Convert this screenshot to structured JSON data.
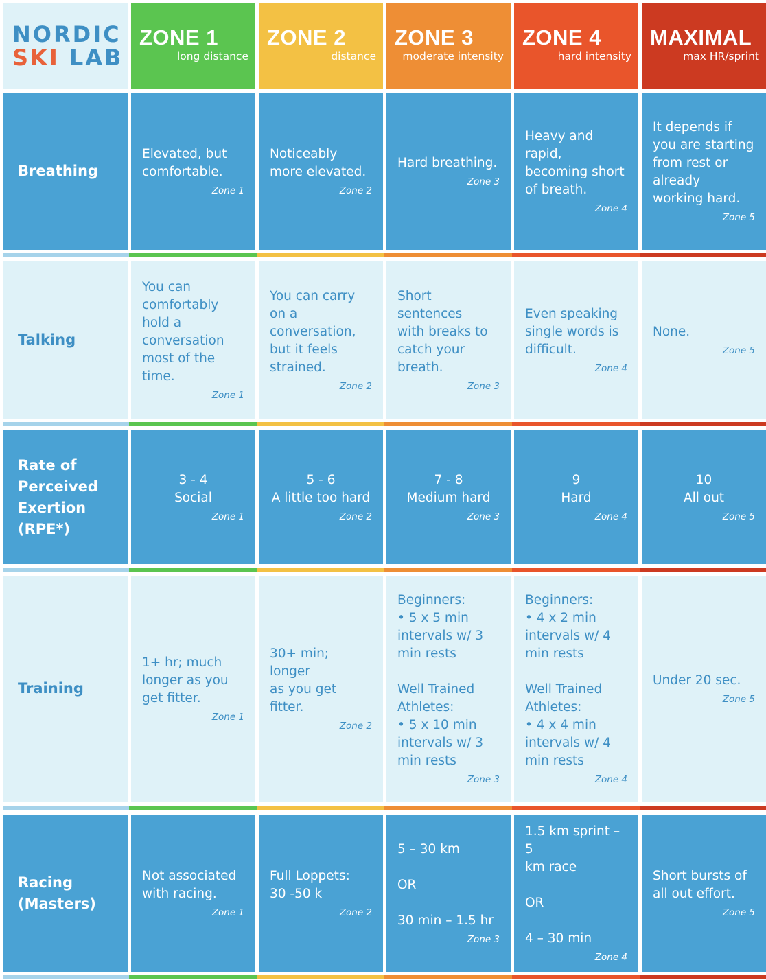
{
  "logo": {
    "line1": "NORDIC",
    "line2a": "SKI",
    "line2b": "LAB"
  },
  "colors": {
    "zone1": "#5bc550",
    "zone2": "#f3c144",
    "zone3": "#ee8e35",
    "zone4": "#e9552b",
    "zone5": "#cc3a21",
    "dark_cell": "#4aa2d4",
    "light_cell": "#dff2f8",
    "light_text": "#3e8fc4",
    "row_header_strip": "#a6d3ea"
  },
  "zones": [
    {
      "title": "ZONE 1",
      "subtitle": "long distance"
    },
    {
      "title": "ZONE 2",
      "subtitle": "distance"
    },
    {
      "title": "ZONE 3",
      "subtitle": "moderate intensity"
    },
    {
      "title": "ZONE 4",
      "subtitle": "hard intensity"
    },
    {
      "title": "MAXIMAL",
      "subtitle": "max HR/sprint"
    }
  ],
  "rows": [
    {
      "label": "Breathing",
      "cells": [
        {
          "text": "Elevated, but\ncomfortable.",
          "tag": "Zone 1"
        },
        {
          "text": "Noticeably\nmore elevated.",
          "tag": "Zone 2"
        },
        {
          "text": "Hard breathing.",
          "tag": "Zone 3"
        },
        {
          "text": "Heavy and\nrapid,\nbecoming short\nof breath.",
          "tag": "Zone 4"
        },
        {
          "text": "It depends if\nyou are starting\nfrom rest or\nalready\nworking hard.",
          "tag": "Zone 5"
        }
      ]
    },
    {
      "label": "Talking",
      "cells": [
        {
          "text": "You can\ncomfortably\nhold a\nconversation\nmost of the\ntime.",
          "tag": "Zone 1"
        },
        {
          "text": "You can carry\non a\nconversation,\nbut it feels\nstrained.",
          "tag": "Zone 2"
        },
        {
          "text": "Short sentences\nwith breaks to\ncatch your\nbreath.",
          "tag": "Zone 3"
        },
        {
          "text": "Even speaking\nsingle words is\ndifficult.",
          "tag": "Zone 4"
        },
        {
          "text": "None.",
          "tag": "Zone 5"
        }
      ]
    },
    {
      "label": "Rate of\nPerceived\nExertion\n(RPE*)",
      "cells": [
        {
          "text": "3 - 4\nSocial",
          "tag": "Zone 1"
        },
        {
          "text": "5 - 6\nA little too hard",
          "tag": "Zone 2"
        },
        {
          "text": "7 - 8\nMedium hard",
          "tag": "Zone 3"
        },
        {
          "text": "9\nHard",
          "tag": "Zone 4"
        },
        {
          "text": "10\nAll out",
          "tag": "Zone 5"
        }
      ]
    },
    {
      "label": "Training",
      "cells": [
        {
          "text": "1+ hr; much\nlonger as you\nget fitter.",
          "tag": "Zone 1"
        },
        {
          "text": "30+ min; longer\nas you get\nfitter.",
          "tag": "Zone 2"
        },
        {
          "text": "Beginners:\n• 5 x 5 min\nintervals w/ 3\nmin rests\n\nWell Trained\nAthletes:\n• 5 x 10 min\nintervals w/ 3\nmin rests",
          "tag": "Zone 3"
        },
        {
          "text": "Beginners:\n• 4 x 2 min\nintervals w/ 4\nmin rests\n\nWell Trained\nAthletes:\n• 4 x 4 min\nintervals w/ 4\nmin rests",
          "tag": "Zone 4"
        },
        {
          "text": "Under 20 sec.",
          "tag": "Zone 5"
        }
      ]
    },
    {
      "label": "Racing\n(Masters)",
      "cells": [
        {
          "text": "Not associated\nwith racing.",
          "tag": "Zone 1"
        },
        {
          "text": "Full Loppets:\n30 -50 k",
          "tag": "Zone 2"
        },
        {
          "text": "5 – 30 km\n\nOR\n\n30 min – 1.5 hr",
          "tag": "Zone 3"
        },
        {
          "text": "1.5 km sprint – 5\nkm race\n\nOR\n\n4 – 30 min",
          "tag": "Zone 4"
        },
        {
          "text": "Short bursts of\nall out effort.",
          "tag": "Zone 5"
        }
      ]
    }
  ]
}
